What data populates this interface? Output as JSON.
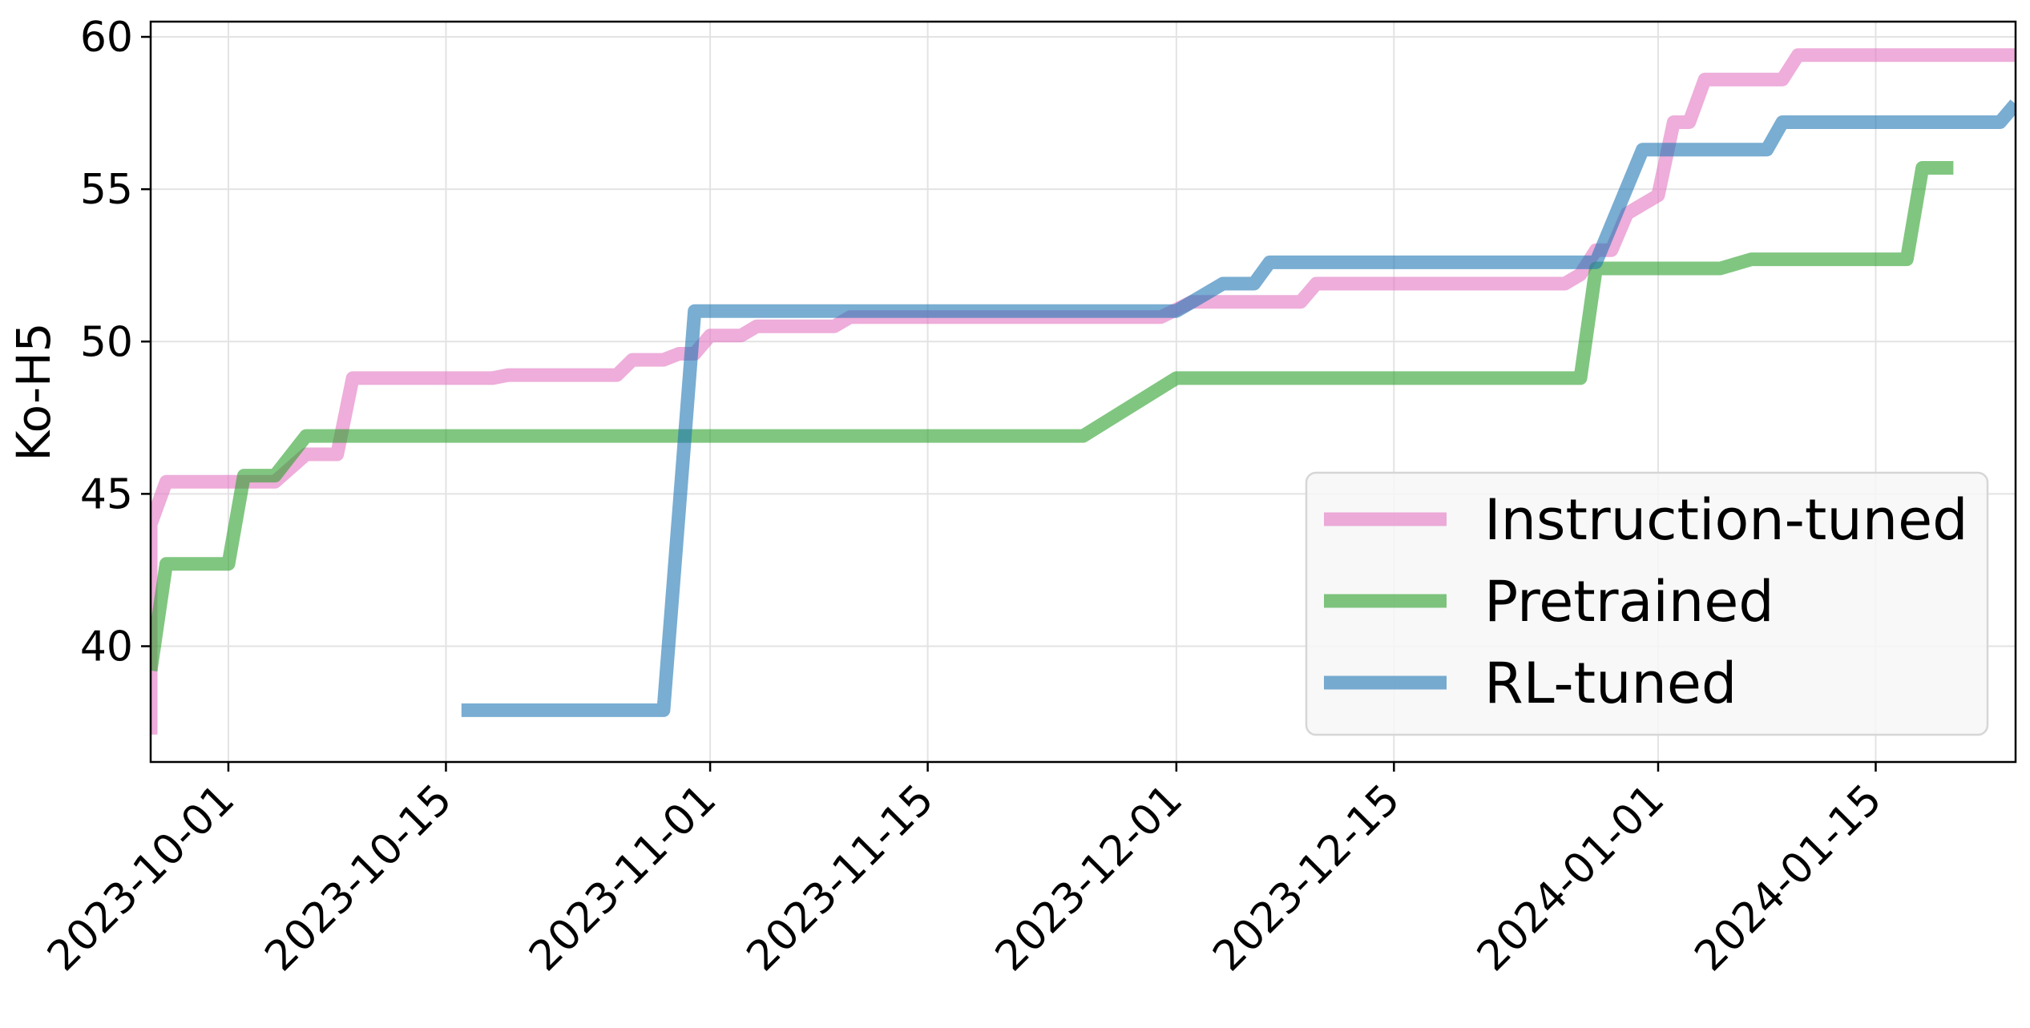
{
  "chart_data": {
    "type": "line",
    "title": "",
    "xlabel": "",
    "ylabel": "Ko-H5",
    "x_type": "date",
    "xlim": [
      "2023-09-26",
      "2024-01-24"
    ],
    "ylim": [
      36.2,
      60.5
    ],
    "x_ticks": [
      "2023-10-01",
      "2023-10-15",
      "2023-11-01",
      "2023-11-15",
      "2023-12-01",
      "2023-12-15",
      "2024-01-01",
      "2024-01-15"
    ],
    "y_ticks": [
      40,
      45,
      50,
      55,
      60
    ],
    "grid": true,
    "legend_position": "lower right",
    "series": [
      {
        "name": "Instruction-tuned",
        "color": "#e377c2",
        "points": [
          [
            "2023-09-26",
            37.1
          ],
          [
            "2023-09-26",
            44.0
          ],
          [
            "2023-09-27",
            45.4
          ],
          [
            "2023-10-04",
            45.4
          ],
          [
            "2023-10-06",
            46.3
          ],
          [
            "2023-10-08",
            46.3
          ],
          [
            "2023-10-09",
            48.8
          ],
          [
            "2023-10-18",
            48.8
          ],
          [
            "2023-10-19",
            48.9
          ],
          [
            "2023-10-26",
            48.9
          ],
          [
            "2023-10-27",
            49.4
          ],
          [
            "2023-10-29",
            49.4
          ],
          [
            "2023-10-30",
            49.6
          ],
          [
            "2023-10-31",
            49.6
          ],
          [
            "2023-11-01",
            50.2
          ],
          [
            "2023-11-03",
            50.2
          ],
          [
            "2023-11-04",
            50.5
          ],
          [
            "2023-11-09",
            50.5
          ],
          [
            "2023-11-10",
            50.8
          ],
          [
            "2023-11-30",
            50.8
          ],
          [
            "2023-12-02",
            51.3
          ],
          [
            "2023-12-09",
            51.3
          ],
          [
            "2023-12-10",
            51.9
          ],
          [
            "2023-12-26",
            51.9
          ],
          [
            "2023-12-27",
            52.2
          ],
          [
            "2023-12-28",
            53.0
          ],
          [
            "2023-12-29",
            53.0
          ],
          [
            "2023-12-30",
            54.2
          ],
          [
            "2024-01-01",
            54.8
          ],
          [
            "2024-01-02",
            57.2
          ],
          [
            "2024-01-03",
            57.2
          ],
          [
            "2024-01-04",
            58.6
          ],
          [
            "2024-01-09",
            58.6
          ],
          [
            "2024-01-10",
            59.4
          ],
          [
            "2024-01-24",
            59.4
          ]
        ]
      },
      {
        "name": "Pretrained",
        "color": "#2ca02c",
        "points": [
          [
            "2023-09-26",
            39.2
          ],
          [
            "2023-09-27",
            42.7
          ],
          [
            "2023-10-01",
            42.7
          ],
          [
            "2023-10-02",
            45.6
          ],
          [
            "2023-10-04",
            45.6
          ],
          [
            "2023-10-06",
            46.9
          ],
          [
            "2023-11-25",
            46.9
          ],
          [
            "2023-12-01",
            48.8
          ],
          [
            "2023-12-27",
            48.8
          ],
          [
            "2023-12-28",
            52.4
          ],
          [
            "2024-01-05",
            52.4
          ],
          [
            "2024-01-07",
            52.7
          ],
          [
            "2024-01-17",
            52.7
          ],
          [
            "2024-01-18",
            55.7
          ],
          [
            "2024-01-20",
            55.7
          ]
        ]
      },
      {
        "name": "RL-tuned",
        "color": "#1f77b4",
        "points": [
          [
            "2023-10-16",
            37.9
          ],
          [
            "2023-10-29",
            37.9
          ],
          [
            "2023-10-31",
            51.0
          ],
          [
            "2023-12-01",
            51.0
          ],
          [
            "2023-12-04",
            51.9
          ],
          [
            "2023-12-06",
            51.9
          ],
          [
            "2023-12-07",
            52.6
          ],
          [
            "2023-12-28",
            52.6
          ],
          [
            "2023-12-31",
            56.3
          ],
          [
            "2024-01-08",
            56.3
          ],
          [
            "2024-01-09",
            57.2
          ],
          [
            "2024-01-23",
            57.2
          ],
          [
            "2024-01-24",
            57.8
          ]
        ]
      }
    ]
  }
}
